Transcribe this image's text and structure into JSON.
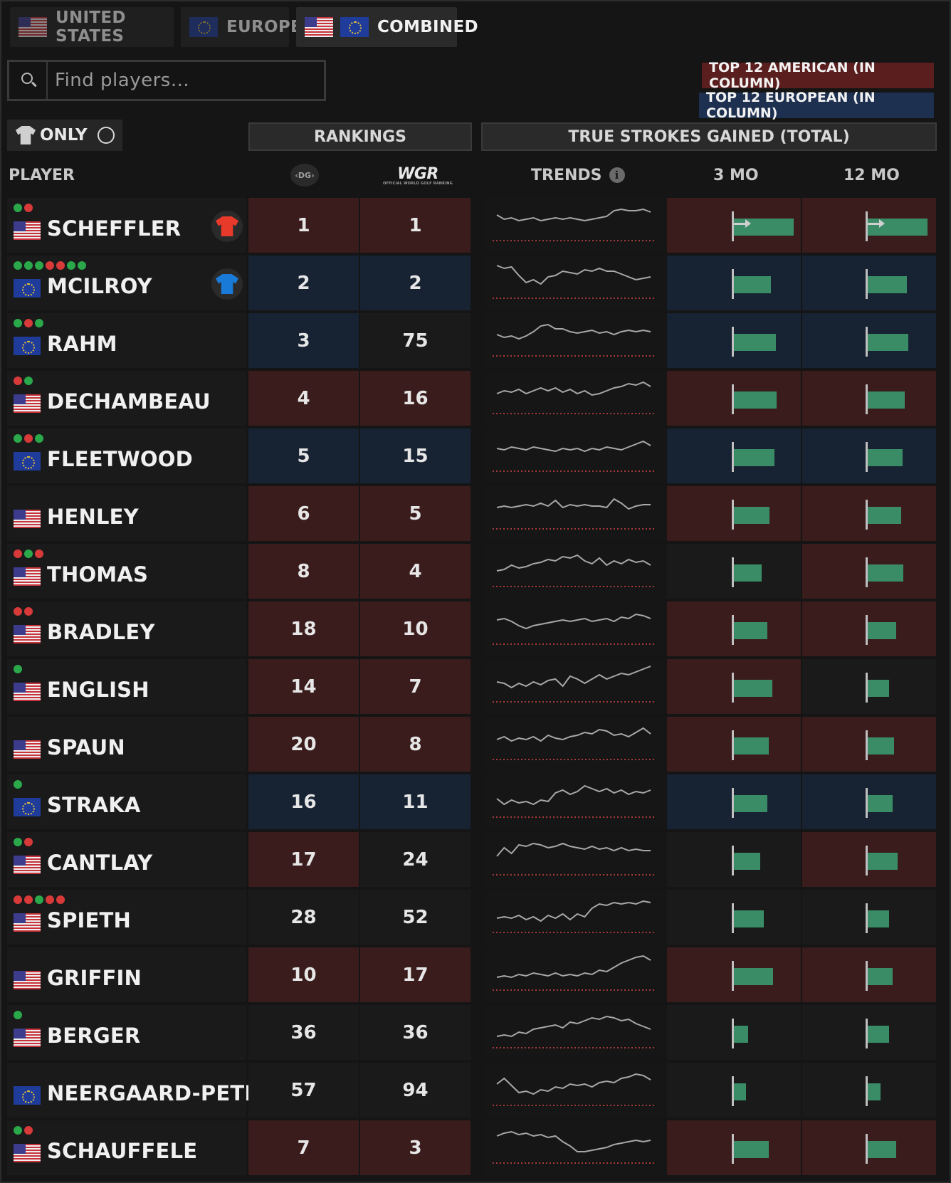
{
  "tabs": [
    {
      "label": "UNITED STATES",
      "flags": [
        "us"
      ],
      "active": false
    },
    {
      "label": "EUROPE",
      "flags": [
        "eu"
      ],
      "active": false
    },
    {
      "label": "COMBINED",
      "flags": [
        "us",
        "eu"
      ],
      "active": true
    }
  ],
  "search": {
    "placeholder": "Find players...",
    "value": ""
  },
  "legend": {
    "american": "TOP 12 AMERICAN (IN COLUMN)",
    "european": "TOP 12 EUROPEAN (IN COLUMN)",
    "colors": {
      "american": "#3a1c1c",
      "european": "#172233"
    }
  },
  "filter": {
    "label": "ONLY",
    "icon": "shirt-icon"
  },
  "groups": {
    "rankings": "RANKINGS",
    "tsg": "TRUE STROKES GAINED (TOTAL)"
  },
  "columns": {
    "player": "PLAYER",
    "dg": "DG",
    "owgr": "WGR",
    "owgr_sub": "OFFICIAL WORLD GOLF RANKING",
    "trends": "TRENDS",
    "mo3": "3 MO",
    "mo12": "12 MO"
  },
  "rows": [
    {
      "name": "SCHEFFLER",
      "country": "us",
      "dots": [
        "g",
        "r"
      ],
      "shirt": "#e83a2a",
      "dg": "1",
      "owgr": "1",
      "hl_dg": "am",
      "hl_owgr": "am",
      "hl_3mo": "am",
      "hl_12mo": "am",
      "sg3": 1.0,
      "sg12": 1.0,
      "arrow": true,
      "trend": [
        0.35,
        0.5,
        0.45,
        0.55,
        0.5,
        0.45,
        0.55,
        0.5,
        0.45,
        0.5,
        0.45,
        0.5,
        0.55,
        0.5,
        0.45,
        0.4,
        0.2,
        0.15,
        0.2,
        0.2,
        0.15,
        0.25
      ]
    },
    {
      "name": "MCILROY",
      "country": "eu",
      "dots": [
        "g",
        "g",
        "g",
        "r",
        "r",
        "g",
        "g"
      ],
      "shirt": "#1a7ad8",
      "dg": "2",
      "owgr": "2",
      "hl_dg": "eu",
      "hl_owgr": "eu",
      "hl_3mo": "eu",
      "hl_12mo": "eu",
      "sg3": 0.62,
      "sg12": 0.66,
      "arrow": false,
      "trend": [
        0.1,
        0.2,
        0.15,
        0.45,
        0.7,
        0.6,
        0.75,
        0.5,
        0.45,
        0.3,
        0.35,
        0.4,
        0.25,
        0.3,
        0.2,
        0.3,
        0.3,
        0.4,
        0.5,
        0.6,
        0.55,
        0.5
      ]
    },
    {
      "name": "RAHM",
      "country": "eu",
      "dots": [
        "g",
        "r",
        "g"
      ],
      "shirt": null,
      "dg": "3",
      "owgr": "75",
      "hl_dg": "eu",
      "hl_owgr": "none",
      "hl_3mo": "eu",
      "hl_12mo": "eu",
      "sg3": 0.7,
      "sg12": 0.68,
      "arrow": false,
      "trend": [
        0.5,
        0.6,
        0.55,
        0.65,
        0.55,
        0.4,
        0.2,
        0.15,
        0.3,
        0.3,
        0.4,
        0.45,
        0.4,
        0.35,
        0.45,
        0.4,
        0.5,
        0.4,
        0.35,
        0.4,
        0.35,
        0.4
      ]
    },
    {
      "name": "DECHAMBEAU",
      "country": "us",
      "dots": [
        "r",
        "g"
      ],
      "shirt": null,
      "dg": "4",
      "owgr": "16",
      "hl_dg": "am",
      "hl_owgr": "am",
      "hl_3mo": "am",
      "hl_12mo": "am",
      "sg3": 0.72,
      "sg12": 0.62,
      "arrow": false,
      "trend": [
        0.55,
        0.45,
        0.5,
        0.4,
        0.55,
        0.45,
        0.35,
        0.45,
        0.35,
        0.5,
        0.4,
        0.55,
        0.45,
        0.6,
        0.55,
        0.45,
        0.35,
        0.3,
        0.2,
        0.25,
        0.15,
        0.3
      ]
    },
    {
      "name": "FLEETWOOD",
      "country": "eu",
      "dots": [
        "g",
        "r",
        "g"
      ],
      "shirt": null,
      "dg": "5",
      "owgr": "15",
      "hl_dg": "eu",
      "hl_owgr": "eu",
      "hl_3mo": "eu",
      "hl_12mo": "eu",
      "sg3": 0.68,
      "sg12": 0.58,
      "arrow": false,
      "trend": [
        0.45,
        0.5,
        0.4,
        0.45,
        0.5,
        0.4,
        0.45,
        0.5,
        0.55,
        0.45,
        0.5,
        0.45,
        0.55,
        0.45,
        0.5,
        0.4,
        0.45,
        0.5,
        0.4,
        0.3,
        0.2,
        0.35
      ]
    },
    {
      "name": "HENLEY",
      "country": "us",
      "dots": [],
      "shirt": null,
      "dg": "6",
      "owgr": "5",
      "hl_dg": "am",
      "hl_owgr": "am",
      "hl_3mo": "am",
      "hl_12mo": "am",
      "sg3": 0.6,
      "sg12": 0.56,
      "arrow": false,
      "trend": [
        0.5,
        0.45,
        0.5,
        0.45,
        0.4,
        0.45,
        0.35,
        0.45,
        0.25,
        0.5,
        0.4,
        0.45,
        0.4,
        0.45,
        0.45,
        0.5,
        0.2,
        0.35,
        0.55,
        0.45,
        0.4,
        0.4
      ]
    },
    {
      "name": "THOMAS",
      "country": "us",
      "dots": [
        "r",
        "g",
        "r"
      ],
      "shirt": null,
      "dg": "8",
      "owgr": "4",
      "hl_dg": "am",
      "hl_owgr": "am",
      "hl_3mo": "none",
      "hl_12mo": "am",
      "sg3": 0.46,
      "sg12": 0.6,
      "arrow": false,
      "trend": [
        0.7,
        0.65,
        0.5,
        0.6,
        0.55,
        0.45,
        0.4,
        0.3,
        0.35,
        0.2,
        0.25,
        0.15,
        0.35,
        0.45,
        0.25,
        0.5,
        0.35,
        0.45,
        0.3,
        0.4,
        0.35,
        0.5
      ]
    },
    {
      "name": "BRADLEY",
      "country": "us",
      "dots": [
        "r",
        "r"
      ],
      "shirt": null,
      "dg": "18",
      "owgr": "10",
      "hl_dg": "am",
      "hl_owgr": "am",
      "hl_3mo": "am",
      "hl_12mo": "am",
      "sg3": 0.56,
      "sg12": 0.48,
      "arrow": false,
      "trend": [
        0.4,
        0.35,
        0.45,
        0.6,
        0.7,
        0.6,
        0.55,
        0.5,
        0.45,
        0.4,
        0.45,
        0.4,
        0.35,
        0.45,
        0.4,
        0.35,
        0.45,
        0.3,
        0.35,
        0.2,
        0.25,
        0.35
      ]
    },
    {
      "name": "ENGLISH",
      "country": "us",
      "dots": [
        "g"
      ],
      "shirt": null,
      "dg": "14",
      "owgr": "7",
      "hl_dg": "am",
      "hl_owgr": "am",
      "hl_3mo": "am",
      "hl_12mo": "none",
      "sg3": 0.64,
      "sg12": 0.36,
      "arrow": false,
      "trend": [
        0.55,
        0.6,
        0.75,
        0.6,
        0.7,
        0.55,
        0.65,
        0.5,
        0.45,
        0.7,
        0.35,
        0.45,
        0.6,
        0.45,
        0.3,
        0.45,
        0.35,
        0.25,
        0.3,
        0.2,
        0.1,
        0.0
      ]
    },
    {
      "name": "SPAUN",
      "country": "us",
      "dots": [],
      "shirt": null,
      "dg": "20",
      "owgr": "8",
      "hl_dg": "am",
      "hl_owgr": "am",
      "hl_3mo": "am",
      "hl_12mo": "am",
      "sg3": 0.58,
      "sg12": 0.44,
      "arrow": false,
      "trend": [
        0.55,
        0.45,
        0.6,
        0.5,
        0.55,
        0.45,
        0.6,
        0.4,
        0.5,
        0.55,
        0.45,
        0.4,
        0.3,
        0.35,
        0.2,
        0.25,
        0.4,
        0.35,
        0.45,
        0.3,
        0.15,
        0.35
      ]
    },
    {
      "name": "STRAKA",
      "country": "eu",
      "dots": [
        "g"
      ],
      "shirt": null,
      "dg": "16",
      "owgr": "11",
      "hl_dg": "eu",
      "hl_owgr": "eu",
      "hl_3mo": "eu",
      "hl_12mo": "eu",
      "sg3": 0.56,
      "sg12": 0.42,
      "arrow": false,
      "trend": [
        0.6,
        0.8,
        0.65,
        0.75,
        0.7,
        0.8,
        0.65,
        0.7,
        0.4,
        0.3,
        0.45,
        0.35,
        0.15,
        0.25,
        0.35,
        0.25,
        0.4,
        0.3,
        0.45,
        0.35,
        0.4,
        0.3
      ]
    },
    {
      "name": "CANTLAY",
      "country": "us",
      "dots": [
        "g",
        "r"
      ],
      "shirt": null,
      "dg": "17",
      "owgr": "24",
      "hl_dg": "am",
      "hl_owgr": "none",
      "hl_3mo": "none",
      "hl_12mo": "am",
      "sg3": 0.44,
      "sg12": 0.5,
      "arrow": false,
      "trend": [
        0.6,
        0.3,
        0.5,
        0.2,
        0.25,
        0.15,
        0.2,
        0.3,
        0.25,
        0.15,
        0.25,
        0.3,
        0.35,
        0.25,
        0.35,
        0.3,
        0.4,
        0.3,
        0.4,
        0.35,
        0.4,
        0.4
      ]
    },
    {
      "name": "SPIETH",
      "country": "us",
      "dots": [
        "r",
        "r",
        "g",
        "r",
        "r"
      ],
      "shirt": null,
      "dg": "28",
      "owgr": "52",
      "hl_dg": "none",
      "hl_owgr": "none",
      "hl_3mo": "none",
      "hl_12mo": "none",
      "sg3": 0.5,
      "sg12": 0.36,
      "arrow": false,
      "trend": [
        0.75,
        0.7,
        0.75,
        0.65,
        0.8,
        0.7,
        0.85,
        0.65,
        0.75,
        0.6,
        0.8,
        0.6,
        0.7,
        0.4,
        0.25,
        0.3,
        0.2,
        0.25,
        0.2,
        0.25,
        0.15,
        0.2
      ]
    },
    {
      "name": "GRIFFIN",
      "country": "us",
      "dots": [],
      "shirt": null,
      "dg": "10",
      "owgr": "17",
      "hl_dg": "am",
      "hl_owgr": "am",
      "hl_3mo": "am",
      "hl_12mo": "am",
      "sg3": 0.66,
      "sg12": 0.42,
      "arrow": false,
      "trend": [
        0.8,
        0.75,
        0.8,
        0.7,
        0.75,
        0.65,
        0.7,
        0.75,
        0.65,
        0.75,
        0.7,
        0.75,
        0.65,
        0.7,
        0.55,
        0.6,
        0.45,
        0.3,
        0.2,
        0.1,
        0.05,
        0.2
      ]
    },
    {
      "name": "BERGER",
      "country": "us",
      "dots": [
        "g"
      ],
      "shirt": null,
      "dg": "36",
      "owgr": "36",
      "hl_dg": "none",
      "hl_owgr": "none",
      "hl_3mo": "none",
      "hl_12mo": "none",
      "sg3": 0.24,
      "sg12": 0.36,
      "arrow": false,
      "trend": [
        0.85,
        0.8,
        0.85,
        0.7,
        0.75,
        0.6,
        0.55,
        0.5,
        0.45,
        0.55,
        0.35,
        0.4,
        0.3,
        0.2,
        0.25,
        0.15,
        0.2,
        0.3,
        0.25,
        0.4,
        0.5,
        0.6
      ]
    },
    {
      "name": "NEERGAARD-PETE...",
      "country": "eu",
      "dots": [],
      "shirt": null,
      "dg": "57",
      "owgr": "94",
      "hl_dg": "none",
      "hl_owgr": "none",
      "hl_3mo": "none",
      "hl_12mo": "none",
      "sg3": 0.2,
      "sg12": 0.22,
      "arrow": false,
      "trend": [
        0.5,
        0.3,
        0.55,
        0.8,
        0.75,
        0.85,
        0.7,
        0.75,
        0.6,
        0.65,
        0.5,
        0.55,
        0.5,
        0.6,
        0.45,
        0.4,
        0.45,
        0.3,
        0.25,
        0.15,
        0.2,
        0.35
      ]
    },
    {
      "name": "SCHAUFFELE",
      "country": "us",
      "dots": [
        "g",
        "r"
      ],
      "shirt": null,
      "dg": "7",
      "owgr": "3",
      "hl_dg": "am",
      "hl_owgr": "am",
      "hl_3mo": "am",
      "hl_12mo": "am",
      "sg3": 0.58,
      "sg12": 0.48,
      "arrow": false,
      "trend": [
        0.3,
        0.2,
        0.15,
        0.25,
        0.2,
        0.3,
        0.25,
        0.35,
        0.3,
        0.5,
        0.65,
        0.85,
        0.85,
        0.8,
        0.75,
        0.7,
        0.6,
        0.55,
        0.5,
        0.45,
        0.5,
        0.45
      ]
    }
  ]
}
